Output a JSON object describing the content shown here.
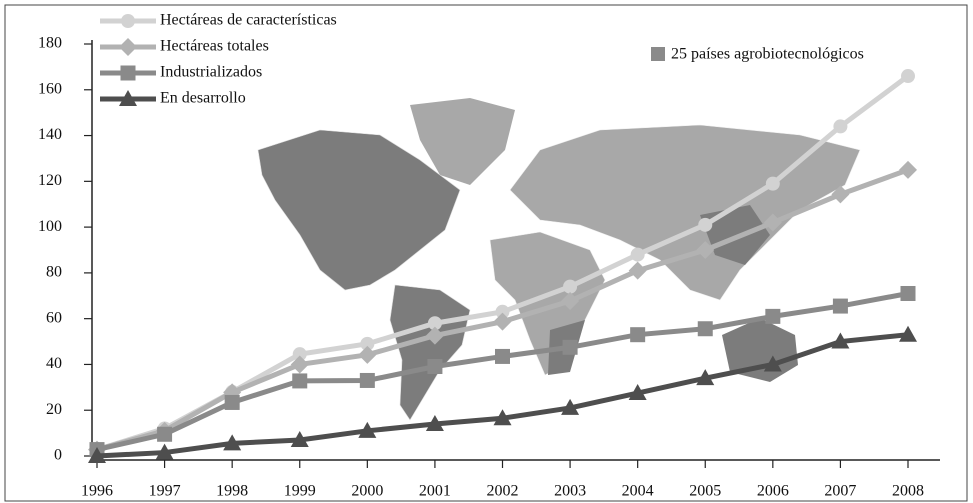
{
  "chart_data": {
    "type": "line",
    "categories": [
      "1996",
      "1997",
      "1998",
      "1999",
      "2000",
      "2001",
      "2002",
      "2003",
      "2004",
      "2005",
      "2006",
      "2007",
      "2008"
    ],
    "ylim": [
      0,
      180
    ],
    "yticks": [
      0,
      20,
      40,
      60,
      80,
      100,
      120,
      140,
      160,
      180
    ],
    "legend": "top-left",
    "series": [
      {
        "name": "Hectáreas de características",
        "color": "#d2d2d2",
        "marker": "circle",
        "values": [
          2.8,
          12,
          28,
          44.5,
          49,
          58,
          63,
          74,
          88,
          101,
          119,
          144,
          166
        ]
      },
      {
        "name": "Hectáreas totales",
        "color": "#b2b2b2",
        "marker": "diamond",
        "values": [
          2.8,
          11,
          27.8,
          40,
          44.2,
          52.6,
          58.7,
          67.7,
          81,
          90,
          102,
          114.3,
          125
        ]
      },
      {
        "name": "Industrializados",
        "color": "#8a8a8a",
        "marker": "square",
        "values": [
          2.8,
          9.5,
          23.4,
          32.8,
          33,
          39.1,
          43.5,
          47.5,
          53,
          55.6,
          61,
          65.5,
          71
        ]
      },
      {
        "name": "En desarrollo",
        "color": "#4e4e4e",
        "marker": "triangle",
        "values": [
          0,
          1.5,
          5.5,
          7,
          11,
          14,
          16.5,
          21,
          27.5,
          34,
          40,
          50,
          53
        ]
      }
    ],
    "annotation": {
      "text": "25 países agrobiotecnológicos",
      "color": "#8a8a8a"
    }
  }
}
